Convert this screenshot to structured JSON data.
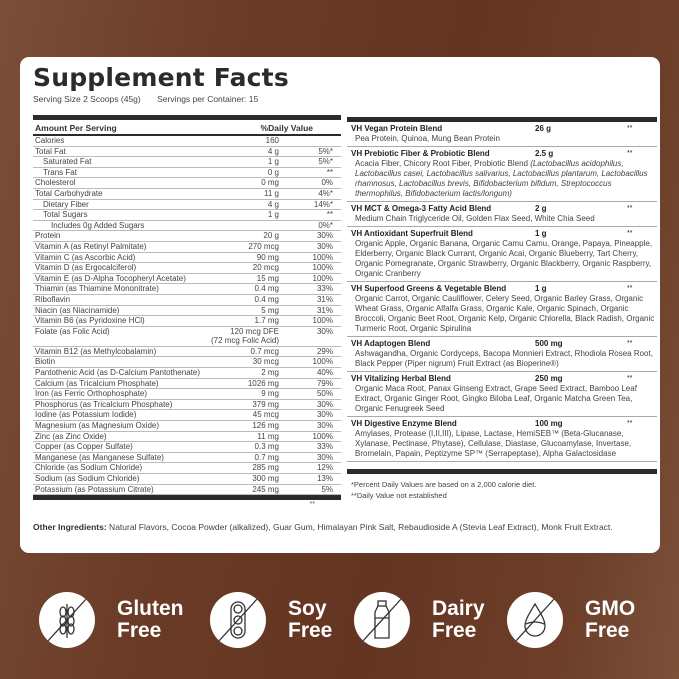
{
  "title": "Supplement Facts",
  "serving_size": "Serving Size 2 Scoops (45g)",
  "servings_per_container": "Servings per Container: 15",
  "table_header": {
    "amount": "Amount Per Serving",
    "dv": "%Daily Value"
  },
  "nutrients": [
    {
      "name": "Calories",
      "amount": "160",
      "dv": "",
      "indent": 0
    },
    {
      "name": "Total Fat",
      "amount": "4 g",
      "dv": "5%*",
      "indent": 0
    },
    {
      "name": "Saturated Fat",
      "amount": "1 g",
      "dv": "5%*",
      "indent": 1
    },
    {
      "name": "Trans Fat",
      "amount": "0 g",
      "dv": "**",
      "indent": 1
    },
    {
      "name": "Cholesterol",
      "amount": "0 mg",
      "dv": "0%",
      "indent": 0
    },
    {
      "name": "Total Carbohydrate",
      "amount": "11 g",
      "dv": "4%*",
      "indent": 0
    },
    {
      "name": "Dietary Fiber",
      "amount": "4 g",
      "dv": "14%*",
      "indent": 1
    },
    {
      "name": "Total Sugars",
      "amount": "1 g",
      "dv": "**",
      "indent": 1
    },
    {
      "name": "Includes 0g Added Sugars",
      "amount": "",
      "dv": "0%*",
      "indent": 2
    },
    {
      "name": "Protein",
      "amount": "20 g",
      "dv": "30%",
      "indent": 0
    },
    {
      "name": "Vitamin A (as Retinyl Palmitate)",
      "amount": "270 mcg",
      "dv": "30%",
      "indent": 0
    },
    {
      "name": "Vitamin C (as Ascorbic Acid)",
      "amount": "90 mg",
      "dv": "100%",
      "indent": 0
    },
    {
      "name": "Vitamin D (as Ergocalciferol)",
      "amount": "20 mcg",
      "dv": "100%",
      "indent": 0
    },
    {
      "name": "Vitamin E (as D-Alpha Tocopheryl Acetate)",
      "amount": "15 mg",
      "dv": "100%",
      "indent": 0
    },
    {
      "name": "Thiamin (as Thiamine Mononitrate)",
      "amount": "0.4 mg",
      "dv": "33%",
      "indent": 0
    },
    {
      "name": "Riboflavin",
      "amount": "0.4 mg",
      "dv": "31%",
      "indent": 0
    },
    {
      "name": "Niacin (as Niacinamide)",
      "amount": "5 mg",
      "dv": "31%",
      "indent": 0
    },
    {
      "name": "Vitamin B6 (as Pyridoxine HCl)",
      "amount": "1.7 mg",
      "dv": "100%",
      "indent": 0
    },
    {
      "name": "Folate (as Folic Acid)",
      "amount": "120 mcg DFE",
      "amount2": "(72 mcg Folic Acid)",
      "dv": "30%",
      "indent": 0
    },
    {
      "name": "Vitamin B12 (as Methylcobalamin)",
      "amount": "0.7 mcg",
      "dv": "29%",
      "indent": 0
    },
    {
      "name": "Biotin",
      "amount": "30 mcg",
      "dv": "100%",
      "indent": 0
    },
    {
      "name": "Pantothenic Acid (as D-Calcium Pantothenate)",
      "amount": "2 mg",
      "dv": "40%",
      "indent": 0
    },
    {
      "name": "Calcium (as Tricalcium Phosphate)",
      "amount": "1026 mg",
      "dv": "79%",
      "indent": 0
    },
    {
      "name": "Iron (as Ferric Orthophosphate)",
      "amount": "9 mg",
      "dv": "50%",
      "indent": 0
    },
    {
      "name": "Phosphorus (as Tricalcium Phosphate)",
      "amount": "379 mg",
      "dv": "30%",
      "indent": 0
    },
    {
      "name": "Iodine (as Potassium Iodide)",
      "amount": "45 mcg",
      "dv": "30%",
      "indent": 0
    },
    {
      "name": "Magnesium (as Magnesium Oxide)",
      "amount": "126 mg",
      "dv": "30%",
      "indent": 0
    },
    {
      "name": "Zinc (as Zinc Oxide)",
      "amount": "11 mg",
      "dv": "100%",
      "indent": 0
    },
    {
      "name": "Copper (as Copper Sulfate)",
      "amount": "0.3 mg",
      "dv": "33%",
      "indent": 0
    },
    {
      "name": "Manganese (as Manganese Sulfate)",
      "amount": "0.7 mg",
      "dv": "30%",
      "indent": 0
    },
    {
      "name": "Chloride (as Sodium Chloride)",
      "amount": "285 mg",
      "dv": "12%",
      "indent": 0
    },
    {
      "name": "Sodium (as Sodium Chloride)",
      "amount": "300 mg",
      "dv": "13%",
      "indent": 0
    },
    {
      "name": "Potassium (as Potassium Citrate)",
      "amount": "245 mg",
      "dv": "5%",
      "indent": 0
    }
  ],
  "left_stars": "**",
  "other_ingredients": {
    "label": "Other Ingredients:",
    "text": " Natural Flavors, Cocoa Powder (alkalized), Guar Gum, Himalayan Pink Salt, Rebaudioside A (Stevia Leaf Extract), Monk Fruit Extract."
  },
  "blends": [
    {
      "name": "VH Vegan Protein Blend",
      "amount": "26 g",
      "dv": "**",
      "ingredients": "Pea Protein, Quinoa, Mung Bean Protein",
      "italic": ""
    },
    {
      "name": "VH Prebiotic Fiber & Probiotic Blend",
      "amount": "2.5 g",
      "dv": "**",
      "ingredients": "Acacia Fiber, Chicory Root Fiber, Probiotic Blend ",
      "italic": "(Lactobacillus acidophilus, Lactobacillus casei, Lactobacillus salivarius, Lactobacillus plantarum, Lactobacillus rhamnosus, Lactobacillus brevis, Bifidobacterium bifidum, Streptococcus thermophilus, Bifidobacterium lactis/longum)"
    },
    {
      "name": "VH MCT & Omega-3 Fatty Acid Blend",
      "amount": "2 g",
      "dv": "**",
      "ingredients": "Medium Chain Triglyceride Oil, Golden Flax Seed, White Chia Seed",
      "italic": ""
    },
    {
      "name": "VH Antioxidant Superfruit Blend",
      "amount": "1 g",
      "dv": "**",
      "ingredients": "Organic Apple, Organic Banana, Organic Camu Camu, Orange, Papaya, Pineapple, Elderberry, Organic Black Currant, Organic Acai, Organic Blueberry, Tart Cherry, Organic Pomegranate, Organic Strawberry, Organic Blackberry, Organic Raspberry, Organic Cranberry",
      "italic": ""
    },
    {
      "name": "VH Superfood Greens & Vegetable Blend",
      "amount": "1 g",
      "dv": "**",
      "ingredients": "Organic Carrot, Organic Cauliflower, Celery Seed, Organic Barley Grass, Organic Wheat Grass, Organic Alfalfa Grass, Organic Kale, Organic Spinach, Organic Broccoli, Organic Beet Root, Organic Kelp, Organic Chlorella, Black Radish, Organic Turmeric Root, Organic Spirulina",
      "italic": ""
    },
    {
      "name": "VH Adaptogen Blend",
      "amount": "500 mg",
      "dv": "**",
      "ingredients": "Ashwagandha, Organic Cordyceps, Bacopa Monnieri Extract, Rhodiola Rosea Root, Black Pepper (Piper nigrum) Fruit Extract (as Bioperine®)",
      "italic": ""
    },
    {
      "name": "VH Vitalizing Herbal Blend",
      "amount": "250 mg",
      "dv": "**",
      "ingredients": "Organic Maca Root, Panax Ginseng Extract, Grape Seed Extract, Bamboo Leaf Extract, Organic Ginger Root, Gingko Biloba Leaf, Organic Matcha Green Tea, Organic Fenugreek Seed",
      "italic": ""
    },
    {
      "name": "VH Digestive Enzyme Blend",
      "amount": "100 mg",
      "dv": "**",
      "ingredients": "Amylases, Protease (I,II,III), Lipase, Lactase, HemiSEB™ (Beta-Glucanase, Xylanase, Pectinase, Phytase), Cellulase, Diastase, Glucoamylase, Invertase, Bromelain, Papain, Peptizyme SP™ (Serrapeptase), Alpha Galactosidase",
      "italic": ""
    }
  ],
  "footnotes": [
    "*Percent Daily Values are based on a 2,000 calorie diet.",
    "**Daily Value not established"
  ],
  "badges": [
    {
      "icon": "wheat-crossed-icon",
      "line1": "Gluten",
      "line2": "Free"
    },
    {
      "icon": "soybean-crossed-icon",
      "line1": "Soy",
      "line2": "Free"
    },
    {
      "icon": "milk-bottle-crossed-icon",
      "line1": "Dairy",
      "line2": "Free"
    },
    {
      "icon": "droplet-crossed-icon",
      "line1": "GMO",
      "line2": "Free"
    }
  ],
  "colors": {
    "background": "#6a3b26",
    "card": "#ffffff",
    "text": "#333333"
  }
}
